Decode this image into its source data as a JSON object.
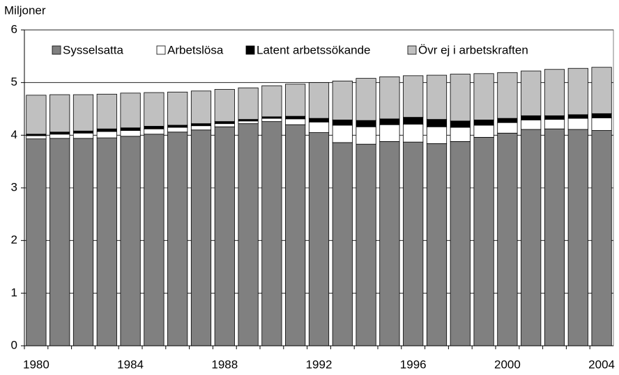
{
  "chart_data": {
    "type": "stacked_bar",
    "y_label": "Miljoner",
    "categories": [
      "1980",
      null,
      null,
      null,
      "1984",
      null,
      null,
      null,
      "1988",
      null,
      null,
      null,
      "1992",
      null,
      null,
      null,
      "1996",
      null,
      null,
      null,
      "2000",
      null,
      null,
      null,
      "2004"
    ],
    "series": [
      {
        "name": "Sysselsatta",
        "color": "#808080",
        "values": [
          3.93,
          3.94,
          3.94,
          3.95,
          3.98,
          4.02,
          4.06,
          4.1,
          4.16,
          4.22,
          4.26,
          4.2,
          4.05,
          3.86,
          3.83,
          3.88,
          3.87,
          3.84,
          3.88,
          3.96,
          4.04,
          4.11,
          4.12,
          4.11,
          4.09
        ]
      },
      {
        "name": "Arbetslösa",
        "color": "#ffffff",
        "values": [
          0.06,
          0.08,
          0.1,
          0.12,
          0.11,
          0.1,
          0.09,
          0.08,
          0.06,
          0.05,
          0.06,
          0.11,
          0.2,
          0.33,
          0.33,
          0.32,
          0.34,
          0.32,
          0.27,
          0.23,
          0.2,
          0.18,
          0.18,
          0.21,
          0.24
        ]
      },
      {
        "name": "Latent arbetssökande",
        "color": "#000000",
        "values": [
          0.03,
          0.04,
          0.04,
          0.05,
          0.05,
          0.05,
          0.04,
          0.04,
          0.04,
          0.03,
          0.03,
          0.05,
          0.07,
          0.1,
          0.12,
          0.11,
          0.13,
          0.14,
          0.12,
          0.1,
          0.08,
          0.08,
          0.07,
          0.07,
          0.08
        ]
      },
      {
        "name": "Övr ej i arbetskraften",
        "color": "#c0c0c0",
        "values": [
          0.74,
          0.71,
          0.69,
          0.66,
          0.66,
          0.64,
          0.63,
          0.62,
          0.61,
          0.6,
          0.59,
          0.61,
          0.68,
          0.74,
          0.8,
          0.8,
          0.79,
          0.84,
          0.89,
          0.88,
          0.87,
          0.85,
          0.88,
          0.88,
          0.88
        ]
      }
    ],
    "ylim": [
      0,
      6
    ],
    "yticks": [
      0,
      1,
      2,
      3,
      4,
      5,
      6
    ],
    "grid": true,
    "legend": "top"
  }
}
